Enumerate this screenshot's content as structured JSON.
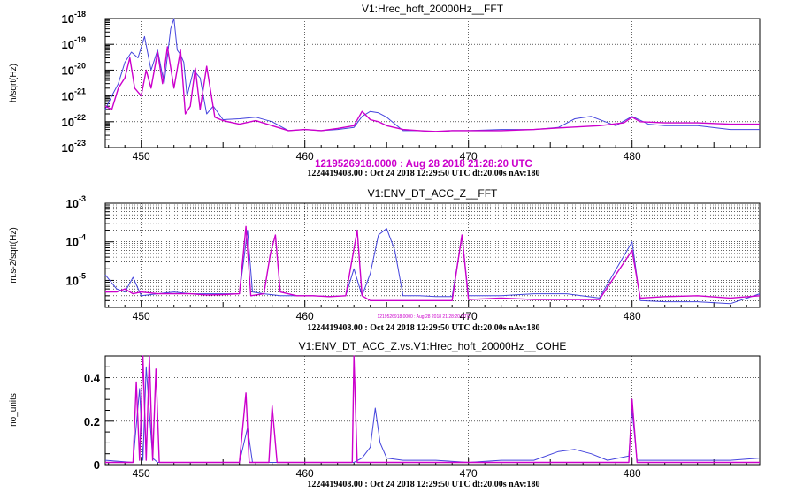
{
  "colors": {
    "reference": "#cc00cc",
    "current": "#4444dd"
  },
  "chart_data": [
    {
      "type": "line",
      "title": "V1:Hrec_hoft_20000Hz__FFT",
      "ylabel": "h/sqrt(Hz)",
      "yscale": "log",
      "xlim": [
        447.8,
        487.8
      ],
      "ylim": [
        1e-23,
        1e-18
      ],
      "xticks": [
        450,
        460,
        470,
        480
      ],
      "yticks": [
        {
          "v": 1e-23,
          "mant": "10",
          "exp": "-23"
        },
        {
          "v": 1e-22,
          "mant": "10",
          "exp": "-22"
        },
        {
          "v": 1e-21,
          "mant": "10",
          "exp": "-21"
        },
        {
          "v": 1e-20,
          "mant": "10",
          "exp": "-20"
        },
        {
          "v": 1e-19,
          "mant": "10",
          "exp": "-19"
        },
        {
          "v": 1e-18,
          "mant": "10",
          "exp": "-18"
        }
      ],
      "footer_ref": "1219526918.0000 : Aug 28 2018 21:28:20 UTC",
      "footer": "1224419408.00 : Oct 24 2018 12:29:50 UTC dt:20.00s nAv:180",
      "series": [
        {
          "color": "#4444dd",
          "x": [
            447.8,
            448.2,
            448.6,
            449.0,
            449.4,
            449.8,
            450.2,
            450.6,
            451.0,
            451.4,
            451.8,
            452.0,
            452.2,
            452.4,
            452.6,
            452.8,
            453.2,
            453.6,
            454.0,
            454.4,
            455.0,
            456.0,
            457.0,
            458.0,
            459.0,
            460.0,
            461.0,
            462.0,
            463.0,
            463.5,
            464.0,
            464.5,
            465.0,
            466.0,
            467.0,
            468.0,
            469.0,
            470.0,
            472.0,
            474.0,
            475.5,
            476.5,
            477.5,
            479.0,
            480.0,
            481.0,
            482.0,
            484.0,
            486.0,
            487.8
          ],
          "y": [
            3e-22,
            1e-21,
            3e-21,
            2e-20,
            5e-20,
            3e-20,
            2e-19,
            1e-20,
            6e-20,
            3e-21,
            4e-19,
            1e-18,
            6e-20,
            4e-20,
            2e-20,
            1e-21,
            1e-20,
            5e-21,
            2e-22,
            4e-22,
            1.2e-22,
            1.3e-22,
            1.5e-22,
            1e-22,
            4.5e-23,
            5e-23,
            4.5e-23,
            5e-23,
            6e-23,
            1.6e-22,
            2.5e-22,
            2.2e-22,
            1.5e-22,
            4.5e-23,
            4.5e-23,
            4e-23,
            4.5e-23,
            4.5e-23,
            5e-23,
            5e-23,
            6e-23,
            1.3e-22,
            1.6e-22,
            7e-23,
            1.6e-22,
            8e-23,
            7e-23,
            7e-23,
            5e-23,
            5e-23
          ]
        },
        {
          "color": "#cc00cc",
          "x": [
            447.8,
            448.2,
            448.6,
            449.0,
            449.3,
            449.6,
            450.0,
            450.3,
            450.6,
            451.0,
            451.3,
            451.6,
            452.0,
            452.4,
            452.7,
            453.0,
            453.3,
            453.6,
            454.0,
            454.5,
            455.0,
            456.0,
            457.0,
            458.0,
            459.0,
            460.0,
            461.0,
            462.0,
            463.0,
            463.5,
            464.0,
            464.5,
            465.0,
            466.0,
            467.0,
            468.0,
            469.0,
            470.0,
            472.0,
            474.0,
            476.0,
            478.0,
            479.5,
            480.0,
            480.5,
            482.0,
            484.0,
            486.0,
            487.8
          ],
          "y": [
            4e-22,
            3e-22,
            2e-21,
            5e-21,
            3e-20,
            2e-21,
            1e-21,
            1e-20,
            2e-21,
            5e-20,
            3e-21,
            8e-20,
            2e-21,
            6e-20,
            2e-22,
            4e-22,
            1.2e-20,
            3e-22,
            1.4e-20,
            1.5e-22,
            1.1e-22,
            8e-23,
            1.1e-22,
            7e-23,
            4.5e-23,
            5e-23,
            4.5e-23,
            5.5e-23,
            7e-23,
            2.5e-22,
            1.2e-22,
            1e-22,
            7e-23,
            5e-23,
            4.5e-23,
            4.2e-23,
            4.5e-23,
            4.5e-23,
            4.5e-23,
            5e-23,
            6e-23,
            7e-23,
            9e-23,
            1.5e-22,
            1e-22,
            9e-23,
            9e-23,
            8e-23,
            8e-23
          ]
        }
      ]
    },
    {
      "type": "line",
      "title": "V1:ENV_DT_ACC_Z__FFT",
      "ylabel": "m.s-2/sqrt(Hz)",
      "yscale": "log",
      "xlim": [
        447.8,
        487.8
      ],
      "ylim": [
        2e-06,
        0.001
      ],
      "xticks": [
        450,
        460,
        470,
        480
      ],
      "yticks": [
        {
          "v": 1e-05,
          "mant": "10",
          "exp": "-5"
        },
        {
          "v": 0.0001,
          "mant": "10",
          "exp": "-4"
        },
        {
          "v": 0.001,
          "mant": "10",
          "exp": "-3"
        }
      ],
      "footer_ref": "1219526918.0000 : Aug 28 2018 21:28:20 UTC",
      "footer": "1224419408.00 : Oct 24 2018 12:29:50 UTC dt:20.00s nAv:180",
      "series": [
        {
          "color": "#4444dd",
          "x": [
            447.8,
            448.5,
            449.0,
            449.5,
            450.0,
            451.0,
            452.0,
            453.0,
            454.0,
            455.0,
            456.0,
            456.5,
            456.8,
            457.5,
            458.5,
            459.5,
            460.5,
            461.5,
            462.5,
            463.0,
            463.5,
            464.0,
            464.5,
            465.0,
            465.5,
            466.0,
            467.0,
            468.0,
            469.0,
            469.6,
            470.0,
            472.0,
            474.0,
            476.0,
            478.0,
            480.0,
            480.5,
            482.0,
            484.0,
            486.0,
            487.8
          ],
          "y": [
            1.4e-05,
            6e-06,
            5e-06,
            1.2e-05,
            4e-06,
            4.5e-06,
            5e-06,
            4.5e-06,
            4.5e-06,
            4.5e-06,
            4.5e-06,
            0.0002,
            5e-06,
            4.5e-06,
            4e-06,
            4e-06,
            4e-06,
            3.8e-06,
            4e-06,
            2e-05,
            4e-06,
            1.5e-05,
            0.00015,
            0.00022,
            6e-05,
            4e-06,
            4e-06,
            3.8e-06,
            3.8e-06,
            0.00014,
            4e-06,
            4e-06,
            4.5e-06,
            4.5e-06,
            3.5e-06,
            0.0001,
            3e-06,
            2.8e-06,
            2.8e-06,
            2.5e-06,
            4.5e-06
          ]
        },
        {
          "color": "#cc00cc",
          "x": [
            447.8,
            448.5,
            449.0,
            449.5,
            450.0,
            451.0,
            452.0,
            453.0,
            454.0,
            455.0,
            456.0,
            456.4,
            456.7,
            457.5,
            457.9,
            458.2,
            458.5,
            459.5,
            460.5,
            461.5,
            462.5,
            463.2,
            463.5,
            464.0,
            465.0,
            466.0,
            467.0,
            468.0,
            469.0,
            469.6,
            470.0,
            472.0,
            474.0,
            476.0,
            478.0,
            480.0,
            480.5,
            482.0,
            484.0,
            486.0,
            487.8
          ],
          "y": [
            5e-06,
            5e-06,
            6e-06,
            4.5e-06,
            5e-06,
            4.5e-06,
            4.5e-06,
            4.5e-06,
            4.2e-06,
            4.3e-06,
            4.5e-06,
            0.00025,
            4e-06,
            4.5e-06,
            5e-05,
            0.00015,
            5e-06,
            4e-06,
            4e-06,
            3.8e-06,
            4e-06,
            0.0002,
            4e-06,
            3e-06,
            3e-06,
            3e-06,
            3e-06,
            3e-06,
            3e-06,
            0.00015,
            3.2e-06,
            3.5e-06,
            3.2e-06,
            3.2e-06,
            3.2e-06,
            6e-05,
            3.5e-06,
            3.8e-06,
            4e-06,
            3.5e-06,
            4e-06
          ]
        }
      ]
    },
    {
      "type": "line",
      "title": "V1:ENV_DT_ACC_Z.vs.V1:Hrec_hoft_20000Hz__COHE",
      "ylabel": "no_units",
      "yscale": "linear",
      "xlim": [
        447.8,
        487.8
      ],
      "ylim": [
        0,
        0.5
      ],
      "xticks": [
        450,
        460,
        470,
        480
      ],
      "yticks": [
        {
          "v": 0,
          "label": "0"
        },
        {
          "v": 0.2,
          "label": "0.2"
        },
        {
          "v": 0.4,
          "label": "0.4"
        }
      ],
      "footer": "1224419408.00 : Oct 24 2018 12:29:50 UTC dt:20.00s nAv:180",
      "series": [
        {
          "color": "#4444dd",
          "x": [
            447.8,
            449.5,
            449.9,
            450.1,
            450.3,
            450.7,
            451.0,
            452.0,
            454.0,
            456.0,
            456.5,
            456.8,
            458.0,
            460.0,
            462.0,
            463.0,
            463.5,
            464.0,
            464.3,
            464.6,
            465.0,
            466.0,
            468.0,
            470.0,
            472.0,
            474.0,
            475.5,
            476.5,
            477.5,
            478.5,
            479.8,
            480.0,
            480.3,
            482.0,
            484.0,
            486.0,
            487.8
          ],
          "y": [
            0.02,
            0.01,
            0.35,
            0.02,
            0.45,
            0.03,
            0.01,
            0.01,
            0.01,
            0.01,
            0.17,
            0.01,
            0.01,
            0.01,
            0.01,
            0.01,
            0.03,
            0.08,
            0.26,
            0.1,
            0.03,
            0.02,
            0.02,
            0.01,
            0.02,
            0.02,
            0.06,
            0.07,
            0.05,
            0.02,
            0.04,
            0.25,
            0.02,
            0.02,
            0.02,
            0.02,
            0.03
          ]
        },
        {
          "color": "#cc00cc",
          "x": [
            447.8,
            449.5,
            449.7,
            449.9,
            450.1,
            450.3,
            450.5,
            450.7,
            450.9,
            451.1,
            452.0,
            454.0,
            456.0,
            456.4,
            456.6,
            457.8,
            458.0,
            458.3,
            460.0,
            462.0,
            462.9,
            463.0,
            463.2,
            464.0,
            466.0,
            468.0,
            470.0,
            472.0,
            474.0,
            476.0,
            478.0,
            479.8,
            480.0,
            480.3,
            482.0,
            484.0,
            486.0,
            487.8
          ],
          "y": [
            0.01,
            0.01,
            0.38,
            0.02,
            0.5,
            0.02,
            0.5,
            0.02,
            0.44,
            0.01,
            0.01,
            0.01,
            0.01,
            0.33,
            0.01,
            0.01,
            0.27,
            0.01,
            0.01,
            0.01,
            0.01,
            0.5,
            0.01,
            0.01,
            0.01,
            0.01,
            0.01,
            0.01,
            0.01,
            0.01,
            0.01,
            0.01,
            0.3,
            0.01,
            0.01,
            0.01,
            0.01,
            0.01
          ]
        }
      ]
    }
  ]
}
